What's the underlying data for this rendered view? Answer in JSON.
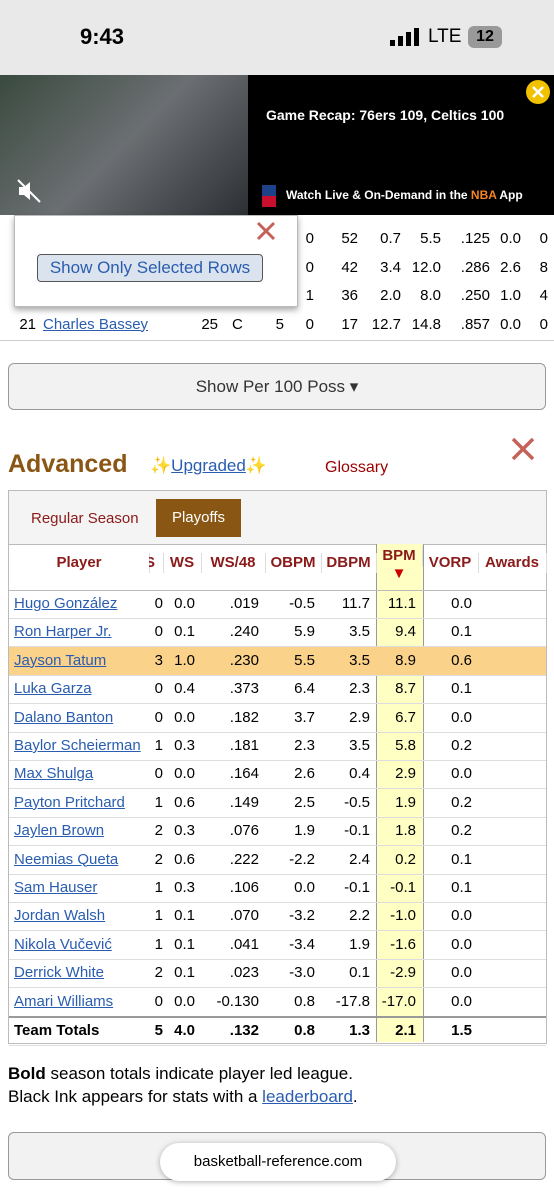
{
  "status_bar": {
    "time": "9:43",
    "network": "LTE",
    "battery": "12"
  },
  "video_ad": {
    "title": "Game Recap: 76ers 109, Celtics 100",
    "cta_prefix": "Watch Live & On-Demand in the ",
    "cta_brand": "NBA",
    "cta_suffix": " App"
  },
  "popup": {
    "button": "Show Only Selected Rows"
  },
  "upper_table": {
    "rows": [
      [
        "0",
        "52",
        "0.7",
        "5.5",
        ".125",
        "0.0",
        "0"
      ],
      [
        "0",
        "42",
        "3.4",
        "12.0",
        ".286",
        "2.6",
        "8"
      ],
      [
        "1",
        "36",
        "2.0",
        "8.0",
        ".250",
        "1.0",
        "4"
      ],
      [
        "21",
        "Charles Bassey",
        "25",
        "C",
        "5",
        "0",
        "17",
        "12.7",
        "14.8",
        ".857",
        "0.0",
        "0"
      ]
    ]
  },
  "per_button": "Show Per 100 Poss ▾",
  "section": {
    "title": "Advanced",
    "upgraded": "Upgraded",
    "sparkle": "✨",
    "glossary": "Glossary"
  },
  "tabs": [
    "Regular Season",
    "Playoffs"
  ],
  "table": {
    "header": [
      "Player",
      "S",
      "WS",
      "WS/48",
      "OBPM",
      "DBPM",
      "BPM",
      "VORP",
      "Awards"
    ],
    "sort_indicator": "▼",
    "highlighted_row": 2,
    "rows": [
      [
        "Hugo González",
        "0",
        "0.0",
        ".019",
        "-0.5",
        "11.7",
        "11.1",
        "0.0"
      ],
      [
        "Ron Harper Jr.",
        "0",
        "0.1",
        ".240",
        "5.9",
        "3.5",
        "9.4",
        "0.1"
      ],
      [
        "Jayson Tatum",
        "3",
        "1.0",
        ".230",
        "5.5",
        "3.5",
        "8.9",
        "0.6"
      ],
      [
        "Luka Garza",
        "0",
        "0.4",
        ".373",
        "6.4",
        "2.3",
        "8.7",
        "0.1"
      ],
      [
        "Dalano Banton",
        "0",
        "0.0",
        ".182",
        "3.7",
        "2.9",
        "6.7",
        "0.0"
      ],
      [
        "Baylor Scheierman",
        "1",
        "0.3",
        ".181",
        "2.3",
        "3.5",
        "5.8",
        "0.2"
      ],
      [
        "Max Shulga",
        "0",
        "0.0",
        ".164",
        "2.6",
        "0.4",
        "2.9",
        "0.0"
      ],
      [
        "Payton Pritchard",
        "1",
        "0.6",
        ".149",
        "2.5",
        "-0.5",
        "1.9",
        "0.2"
      ],
      [
        "Jaylen Brown",
        "2",
        "0.3",
        ".076",
        "1.9",
        "-0.1",
        "1.8",
        "0.2"
      ],
      [
        "Neemias Queta",
        "2",
        "0.6",
        ".222",
        "-2.2",
        "2.4",
        "0.2",
        "0.1"
      ],
      [
        "Sam Hauser",
        "1",
        "0.3",
        ".106",
        "0.0",
        "-0.1",
        "-0.1",
        "0.1"
      ],
      [
        "Jordan Walsh",
        "1",
        "0.1",
        ".070",
        "-3.2",
        "2.2",
        "-1.0",
        "0.0"
      ],
      [
        "Nikola Vučević",
        "1",
        "0.1",
        ".041",
        "-3.4",
        "1.9",
        "-1.6",
        "0.0"
      ],
      [
        "Derrick White",
        "2",
        "0.1",
        ".023",
        "-3.0",
        "0.1",
        "-2.9",
        "0.0"
      ],
      [
        "Amari Williams",
        "0",
        "0.0",
        "-0.130",
        "0.8",
        "-17.8",
        "-17.0",
        "0.0"
      ]
    ],
    "totals": [
      "Team Totals",
      "5",
      "4.0",
      ".132",
      "0.8",
      "1.3",
      "2.1",
      "1.5"
    ]
  },
  "footer": {
    "line1_bold": "Bold",
    "line1_rest": " season totals indicate player led league.",
    "line2_prefix": "Black Ink appears for stats with a ",
    "line2_link": "leaderboard",
    "line2_suffix": "."
  },
  "url_bar": "basketball-reference.com"
}
